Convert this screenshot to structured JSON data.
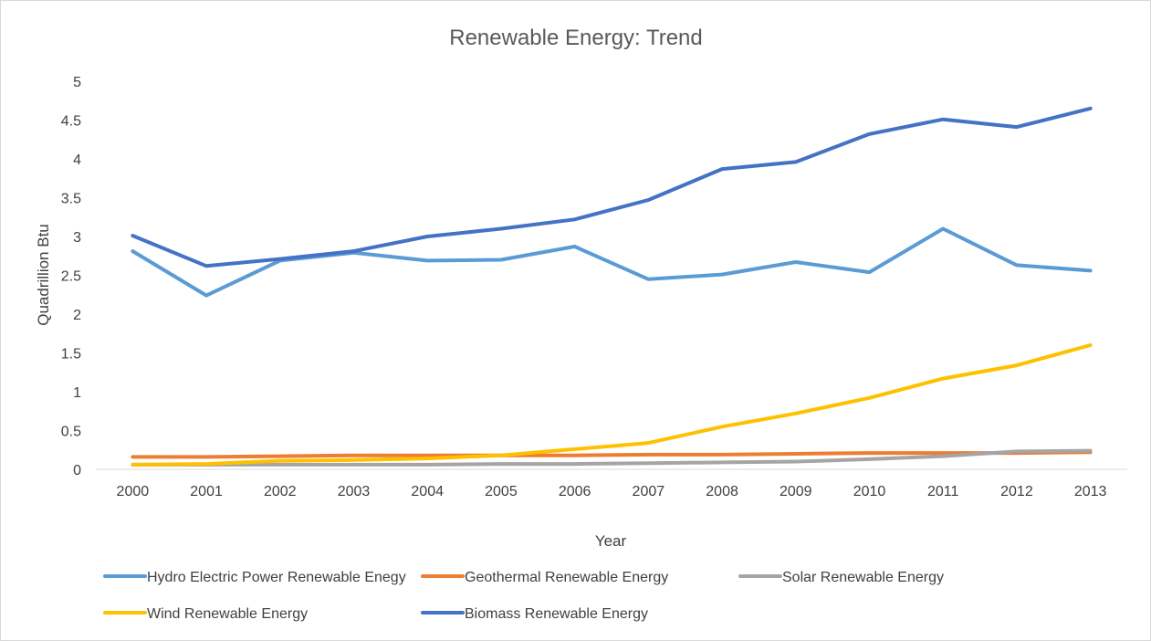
{
  "chart_data": {
    "type": "line",
    "title": "Renewable Energy: Trend",
    "xlabel": "Year",
    "ylabel": "Quadrillion Btu",
    "categories": [
      "2000",
      "2001",
      "2002",
      "2003",
      "2004",
      "2005",
      "2006",
      "2007",
      "2008",
      "2009",
      "2010",
      "2011",
      "2012",
      "2013"
    ],
    "ylim": [
      0,
      5
    ],
    "yticks": [
      "0",
      "0.5",
      "1",
      "1.5",
      "2",
      "2.5",
      "3",
      "3.5",
      "4",
      "4.5",
      "5"
    ],
    "grid": false,
    "legend_position": "bottom",
    "series": [
      {
        "name": "Hydro Electric Power Renewable Enegy",
        "color": "#5b9bd5",
        "values": [
          2.81,
          2.24,
          2.69,
          2.79,
          2.69,
          2.7,
          2.87,
          2.45,
          2.51,
          2.67,
          2.54,
          3.1,
          2.63,
          2.56
        ]
      },
      {
        "name": "Geothermal Renewable Energy",
        "color": "#ed7d31",
        "values": [
          0.16,
          0.16,
          0.17,
          0.18,
          0.18,
          0.18,
          0.18,
          0.19,
          0.19,
          0.2,
          0.21,
          0.21,
          0.21,
          0.22
        ]
      },
      {
        "name": "Solar Renewable Energy",
        "color": "#a5a5a5",
        "values": [
          0.06,
          0.06,
          0.06,
          0.06,
          0.06,
          0.07,
          0.07,
          0.08,
          0.09,
          0.1,
          0.13,
          0.17,
          0.23,
          0.24
        ]
      },
      {
        "name": "Wind Renewable Energy",
        "color": "#ffc000",
        "values": [
          0.06,
          0.07,
          0.11,
          0.12,
          0.14,
          0.18,
          0.26,
          0.34,
          0.55,
          0.72,
          0.92,
          1.17,
          1.34,
          1.6
        ]
      },
      {
        "name": "Biomass Renewable Energy",
        "color": "#4472c4",
        "values": [
          3.01,
          2.62,
          2.71,
          2.81,
          3.0,
          3.1,
          3.22,
          3.47,
          3.87,
          3.96,
          4.32,
          4.51,
          4.41,
          4.65
        ]
      }
    ]
  }
}
